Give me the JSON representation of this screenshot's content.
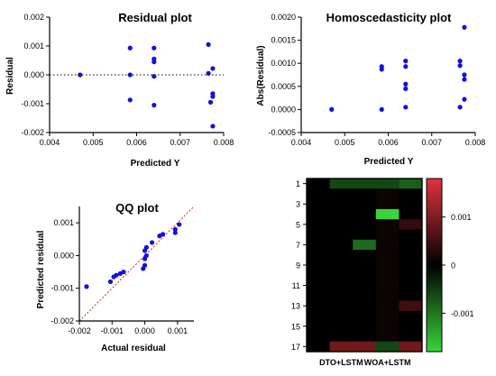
{
  "chart_data": [
    {
      "type": "scatter",
      "title": "Residual plot",
      "xlabel": "Predicted Y",
      "ylabel": "Residual",
      "xlim": [
        0.004,
        0.008
      ],
      "ylim": [
        -0.002,
        0.002
      ],
      "xticks": [
        "0.004",
        "0.005",
        "0.006",
        "0.007",
        "0.008"
      ],
      "yticks": [
        "0.002",
        "0.001",
        "0.000",
        "-0.001",
        "-0.002"
      ],
      "zero_line": true,
      "color": "#1010e0",
      "points": [
        [
          0.0047,
          0.0
        ],
        [
          0.00585,
          0.00093
        ],
        [
          0.00585,
          0.0
        ],
        [
          0.00585,
          -0.00087
        ],
        [
          0.0064,
          0.00093
        ],
        [
          0.0064,
          0.00055
        ],
        [
          0.0064,
          0.00045
        ],
        [
          0.0064,
          -5e-05
        ],
        [
          0.0064,
          -0.00105
        ],
        [
          0.00765,
          0.00105
        ],
        [
          0.00765,
          5e-05
        ],
        [
          0.0077,
          -0.00095
        ],
        [
          0.00775,
          0.00022
        ],
        [
          0.00775,
          -0.00065
        ],
        [
          0.00775,
          -0.00075
        ],
        [
          0.00775,
          -0.00178
        ]
      ]
    },
    {
      "type": "scatter",
      "title": "Homoscedasticity plot",
      "xlabel": "Predicted Y",
      "ylabel": "Abs(Residual)",
      "xlim": [
        0.004,
        0.008
      ],
      "ylim": [
        -0.0005,
        0.002
      ],
      "xticks": [
        "0.004",
        "0.005",
        "0.006",
        "0.007",
        "0.008"
      ],
      "yticks": [
        "0.0020",
        "0.0015",
        "0.0010",
        "0.0005",
        "0.0000",
        "-0.0005"
      ],
      "color": "#1010e0",
      "points": [
        [
          0.0047,
          0.0
        ],
        [
          0.00585,
          0.00093
        ],
        [
          0.00585,
          0.00087
        ],
        [
          0.00585,
          0.0
        ],
        [
          0.0064,
          0.00105
        ],
        [
          0.0064,
          0.00093
        ],
        [
          0.0064,
          0.00055
        ],
        [
          0.0064,
          0.00045
        ],
        [
          0.0064,
          5e-05
        ],
        [
          0.00765,
          0.00105
        ],
        [
          0.00765,
          0.00095
        ],
        [
          0.00765,
          5e-05
        ],
        [
          0.00775,
          0.00178
        ],
        [
          0.00775,
          0.00075
        ],
        [
          0.00775,
          0.00065
        ],
        [
          0.00775,
          0.00022
        ]
      ]
    },
    {
      "type": "scatter",
      "title": "QQ plot",
      "xlabel": "Actual residual",
      "ylabel": "Predicted residual",
      "xlim": [
        -0.002,
        0.0015
      ],
      "ylim": [
        -0.002,
        0.0015
      ],
      "xticks": [
        "-0.002",
        "-0.001",
        "0.000",
        "0.001"
      ],
      "yticks": [
        "0.001",
        "0.000",
        "-0.001",
        "-0.002"
      ],
      "reference_line": "y = x",
      "color": "#1010e0",
      "points": [
        [
          -0.00178,
          -0.00095
        ],
        [
          -0.00105,
          -0.0008
        ],
        [
          -0.00095,
          -0.00065
        ],
        [
          -0.00087,
          -0.0006
        ],
        [
          -0.00075,
          -0.00055
        ],
        [
          -0.00065,
          -0.0005
        ],
        [
          -5e-05,
          -0.0004
        ],
        [
          0.0,
          -0.0003
        ],
        [
          0.0,
          -0.0001
        ],
        [
          5e-05,
          0.0
        ],
        [
          0.0,
          0.00015
        ],
        [
          5e-05,
          0.00025
        ],
        [
          0.00022,
          0.0004
        ],
        [
          0.00045,
          0.0006
        ],
        [
          0.00055,
          0.00065
        ],
        [
          0.00093,
          0.0007
        ],
        [
          0.00093,
          0.0008
        ],
        [
          0.00105,
          0.00095
        ]
      ]
    },
    {
      "type": "heatmap",
      "yticks": [
        "1",
        "3",
        "5",
        "7",
        "9",
        "11",
        "13",
        "15",
        "17"
      ],
      "x_group_labels": [
        "DTO+LSTM",
        "WOA+LSTM"
      ],
      "rows": 17,
      "cols": 5,
      "values": [
        [
          0,
          -0.0006,
          -0.0006,
          -0.0006,
          -0.0008
        ],
        [
          0,
          0,
          0,
          0.0001,
          0
        ],
        [
          0,
          0,
          0,
          0.0001,
          0
        ],
        [
          0,
          0,
          0,
          -0.0018,
          0
        ],
        [
          0,
          0,
          0,
          0.0001,
          0.0004
        ],
        [
          0,
          0,
          0,
          0.0001,
          0
        ],
        [
          0,
          0,
          -0.0009,
          0.0001,
          0
        ],
        [
          0,
          0,
          0,
          0.0001,
          0
        ],
        [
          0,
          0,
          0,
          0.0001,
          0
        ],
        [
          0,
          0,
          0,
          0.0001,
          0
        ],
        [
          0,
          0,
          0,
          0.0001,
          0
        ],
        [
          0,
          0,
          0,
          0.0001,
          0
        ],
        [
          0,
          0,
          0,
          0.0001,
          0.0005
        ],
        [
          0,
          0,
          0,
          0.0001,
          0
        ],
        [
          0,
          0,
          0,
          0.0001,
          0
        ],
        [
          0,
          0,
          0,
          0.0001,
          0
        ],
        [
          0,
          0.0009,
          0.0009,
          -0.0006,
          0.0009
        ]
      ],
      "colorbar": {
        "range": [
          -0.0018,
          0.0018
        ],
        "ticks": [
          "0.001",
          "0",
          "-0.001"
        ],
        "tick_values": [
          0.001,
          0,
          -0.001
        ],
        "high_color": "#e0343c",
        "mid_color": "#000000",
        "low_color": "#3ad43a"
      }
    }
  ]
}
